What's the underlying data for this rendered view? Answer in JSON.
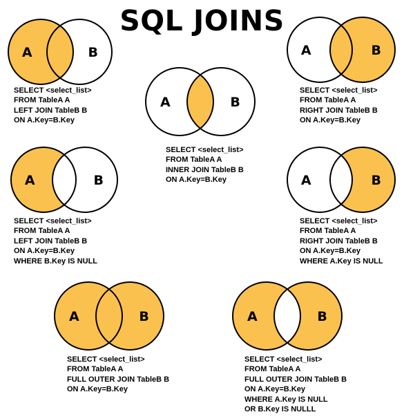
{
  "title": "SQL JOINS",
  "colors": {
    "fill": "#fbc14f",
    "outline": "#000000"
  },
  "diagrams": [
    {
      "id": "left-join",
      "label_a": "A",
      "label_b": "B",
      "shade": [
        "a_only",
        "intersection"
      ],
      "sql": [
        "SELECT <select_list>",
        "FROM TableA A",
        "LEFT JOIN TableB B",
        "ON A.Key=B.Key"
      ]
    },
    {
      "id": "inner-join",
      "label_a": "A",
      "label_b": "B",
      "shade": [
        "intersection"
      ],
      "sql": [
        "SELECT <select_list>",
        "FROM TableA A",
        "INNER JOIN TableB B",
        "ON A.Key=B.Key"
      ]
    },
    {
      "id": "right-join",
      "label_a": "A",
      "label_b": "B",
      "shade": [
        "intersection",
        "b_only"
      ],
      "sql": [
        "SELECT <select_list>",
        "FROM TableA A",
        "RIGHT JOIN TableB B",
        "ON A.Key=B.Key"
      ]
    },
    {
      "id": "left-join-exclusive",
      "label_a": "A",
      "label_b": "B",
      "shade": [
        "a_only"
      ],
      "sql": [
        "SELECT <select_list>",
        "FROM TableA A",
        "LEFT JOIN TableB B",
        "ON A.Key=B.Key",
        "WHERE B.Key IS NULL"
      ]
    },
    {
      "id": "right-join-exclusive",
      "label_a": "A",
      "label_b": "B",
      "shade": [
        "b_only"
      ],
      "sql": [
        "SELECT <select_list>",
        "FROM TableA A",
        "RIGHT JOIN TableB B",
        "ON A.Key=B.Key",
        "WHERE A.Key IS NULL"
      ]
    },
    {
      "id": "full-outer-join",
      "label_a": "A",
      "label_b": "B",
      "shade": [
        "a_only",
        "intersection",
        "b_only"
      ],
      "sql": [
        "SELECT <select_list>",
        "FROM TableA A",
        "FULL OUTER JOIN TableB B",
        "ON A.Key=B.Key"
      ]
    },
    {
      "id": "full-outer-join-exclusive",
      "label_a": "A",
      "label_b": "B",
      "shade": [
        "a_only",
        "b_only"
      ],
      "sql": [
        "SELECT <select_list>",
        "FROM TableA A",
        "FULL OUTER JOIN TableB B",
        "ON A.Key=B.Key",
        "WHERE A.Key IS NULL",
        "OR B.Key IS NULLL"
      ]
    }
  ]
}
